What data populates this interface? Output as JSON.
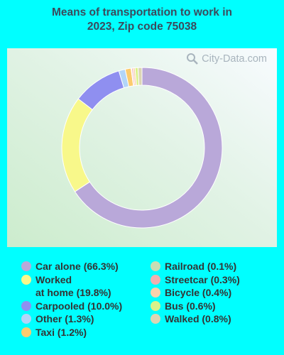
{
  "title_line1": "Means of transportation to work in",
  "title_line2": "2023, Zip code 75038",
  "watermark": "City-Data.com",
  "chart_data": {
    "type": "pie",
    "donut": true,
    "title": "Means of transportation to work in 2023, Zip code 75038",
    "slices": [
      {
        "label": "Car alone (66.3%)",
        "value": 66.3,
        "color": "#b9a8d9"
      },
      {
        "label": "Worked at home (19.8%)",
        "value": 19.8,
        "color": "#f8f88a"
      },
      {
        "label": "Carpooled (10.0%)",
        "value": 10.0,
        "color": "#8f8ff0"
      },
      {
        "label": "Other (1.3%)",
        "value": 1.3,
        "color": "#b3d5f8"
      },
      {
        "label": "Taxi (1.2%)",
        "value": 1.2,
        "color": "#fccb6e"
      },
      {
        "label": "Railroad (0.1%)",
        "value": 0.1,
        "color": "#c6deb4"
      },
      {
        "label": "Streetcar (0.3%)",
        "value": 0.3,
        "color": "#f0b0b0"
      },
      {
        "label": "Bicycle (0.4%)",
        "value": 0.4,
        "color": "#f8d2ac"
      },
      {
        "label": "Bus (0.6%)",
        "value": 0.6,
        "color": "#d9f28a"
      },
      {
        "label": "Walked (0.8%)",
        "value": 0.8,
        "color": "#dcd6b4"
      }
    ]
  },
  "legend_left": [
    {
      "line1": "Car alone (66.3%)",
      "line2": "",
      "color": "#b9a8d9"
    },
    {
      "line1": "Worked",
      "line2": "at home (19.8%)",
      "color": "#f8f88a"
    },
    {
      "line1": "Carpooled (10.0%)",
      "line2": "",
      "color": "#8f8ff0"
    },
    {
      "line1": "Other (1.3%)",
      "line2": "",
      "color": "#b3d5f8"
    },
    {
      "line1": "Taxi (1.2%)",
      "line2": "",
      "color": "#fccb6e"
    }
  ],
  "legend_right": [
    {
      "line1": "Railroad (0.1%)",
      "color": "#c6deb4"
    },
    {
      "line1": "Streetcar (0.3%)",
      "color": "#f0b0b0"
    },
    {
      "line1": "Bicycle (0.4%)",
      "color": "#f8d2ac"
    },
    {
      "line1": "Bus (0.6%)",
      "color": "#d9f28a"
    },
    {
      "line1": "Walked (0.8%)",
      "color": "#dcd6b4"
    }
  ]
}
